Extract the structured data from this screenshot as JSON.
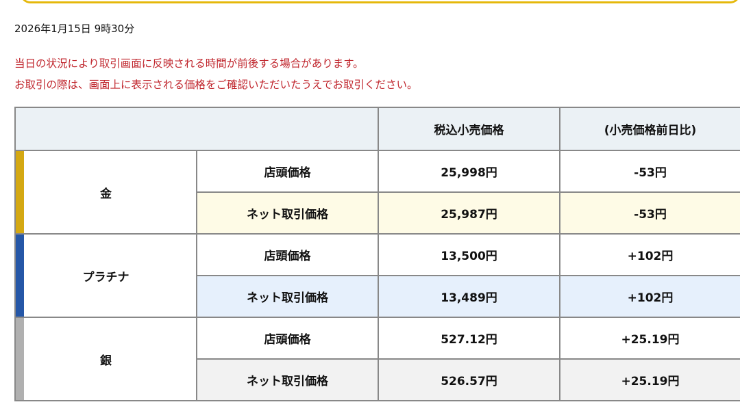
{
  "datetime": "2026年1月15日 9時30分",
  "notice": [
    "当日の状況により取引画面に反映される時間が前後する場合があります。",
    "お取引の際は、画面上に表示される価格をご確認いただいたうえでお取引ください。"
  ],
  "table": {
    "headers": [
      "",
      "税込小売価格",
      "(小売価格前日比)"
    ],
    "products": [
      {
        "name": "金",
        "color": "#d4a812",
        "tint": "#fefbe6",
        "rows": [
          {
            "type": "店頭価格",
            "price": "25,998円",
            "change": "-53円"
          },
          {
            "type": "ネット取引価格",
            "price": "25,987円",
            "change": "-53円"
          }
        ]
      },
      {
        "name": "プラチナ",
        "color": "#2557a7",
        "tint": "#e6f0fc",
        "rows": [
          {
            "type": "店頭価格",
            "price": "13,500円",
            "change": "+102円"
          },
          {
            "type": "ネット取引価格",
            "price": "13,489円",
            "change": "+102円"
          }
        ]
      },
      {
        "name": "銀",
        "color": "#b0b0b0",
        "tint": "#f2f2f2",
        "rows": [
          {
            "type": "店頭価格",
            "price": "527.12円",
            "change": "+25.19円"
          },
          {
            "type": "ネット取引価格",
            "price": "526.57円",
            "change": "+25.19円"
          }
        ]
      }
    ]
  }
}
